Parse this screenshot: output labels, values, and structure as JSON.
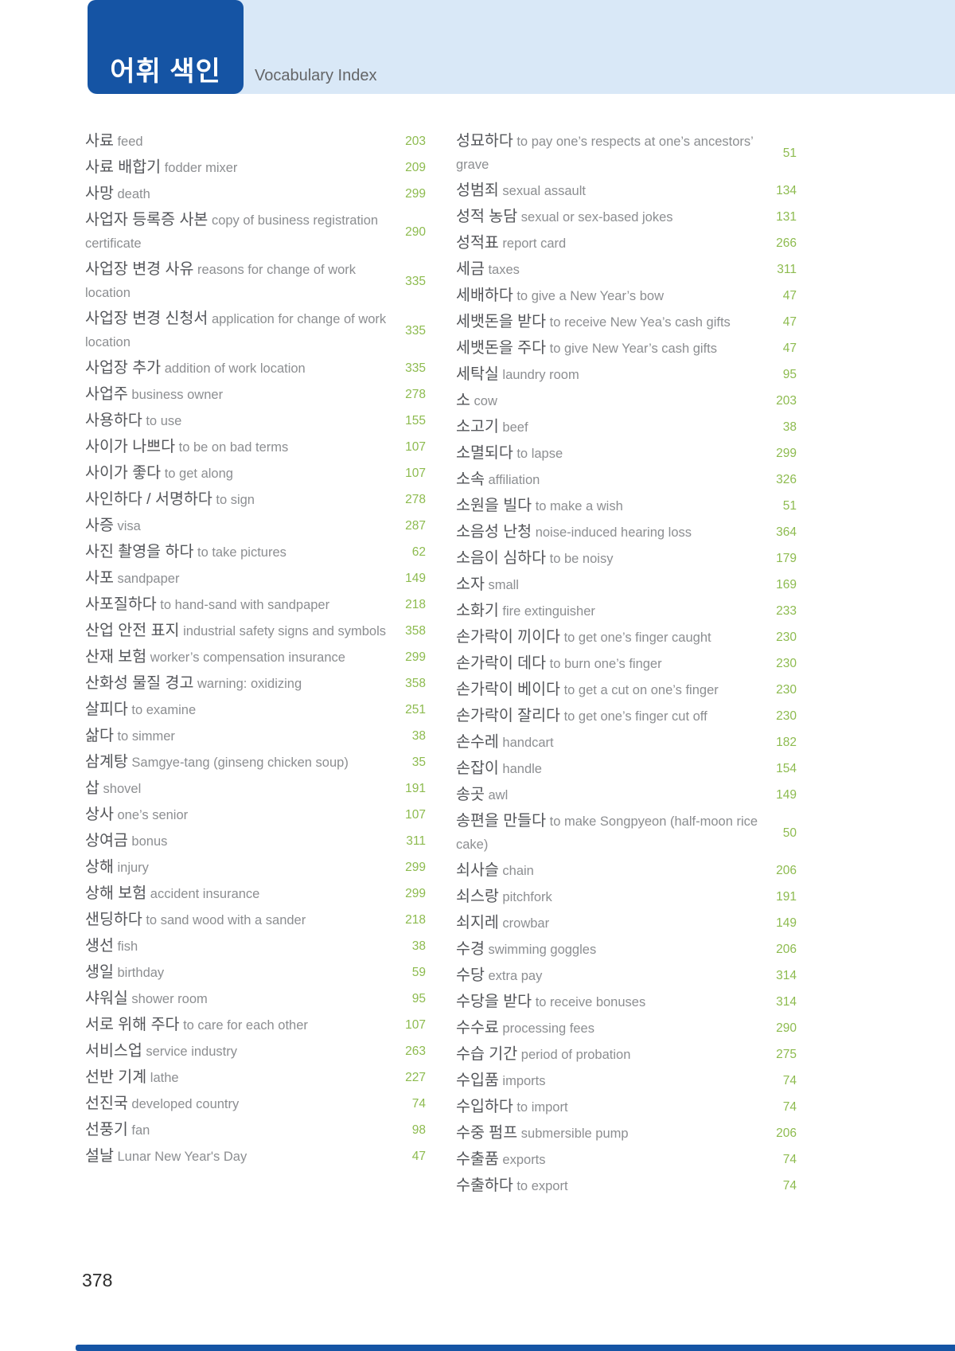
{
  "header": {
    "title_ko": "어휘 색인",
    "title_en": "Vocabulary Index"
  },
  "footer": {
    "page_number": "378"
  },
  "colors": {
    "accent_blue": "#1554a4",
    "band_blue": "#d9e8f7",
    "number_green": "#8dbb4f",
    "korean_text": "#54565a",
    "english_text": "#8c8e91"
  },
  "columns": [
    {
      "entries": [
        {
          "ko": "사료",
          "en": "feed",
          "page": "203"
        },
        {
          "ko": "사료 배합기",
          "en": "fodder mixer",
          "page": "209"
        },
        {
          "ko": "사망",
          "en": "death",
          "page": "299"
        },
        {
          "ko": "사업자 등록증 사본",
          "en": "copy of business registration certificate",
          "page": "290"
        },
        {
          "ko": "사업장 변경 사유",
          "en": "reasons for change of work location",
          "page": "335"
        },
        {
          "ko": "사업장 변경 신청서",
          "en": "application for change of work location",
          "page": "335"
        },
        {
          "ko": "사업장 추가",
          "en": "addition of work location",
          "page": "335"
        },
        {
          "ko": "사업주",
          "en": "business owner",
          "page": "278"
        },
        {
          "ko": "사용하다",
          "en": "to use",
          "page": "155"
        },
        {
          "ko": "사이가 나쁘다",
          "en": "to be on bad terms",
          "page": "107"
        },
        {
          "ko": "사이가 좋다",
          "en": "to get along",
          "page": "107"
        },
        {
          "ko": "사인하다 / 서명하다",
          "en": "to sign",
          "page": "278"
        },
        {
          "ko": "사증",
          "en": "visa",
          "page": "287"
        },
        {
          "ko": "사진 촬영을 하다",
          "en": "to take pictures",
          "page": "62"
        },
        {
          "ko": "사포",
          "en": "sandpaper",
          "page": "149"
        },
        {
          "ko": "사포질하다",
          "en": "to hand-sand with sandpaper",
          "page": "218"
        },
        {
          "ko": "산업 안전 표지",
          "en": "industrial safety signs and symbols",
          "page": "358"
        },
        {
          "ko": "산재 보험",
          "en": "worker’s compensation insurance",
          "page": "299"
        },
        {
          "ko": "산화성 물질 경고",
          "en": "warning: oxidizing",
          "page": "358"
        },
        {
          "ko": "살피다",
          "en": "to examine",
          "page": "251"
        },
        {
          "ko": "삶다",
          "en": "to simmer",
          "page": "38"
        },
        {
          "ko": "삼계탕",
          "en": "Samgye-tang (ginseng chicken soup)",
          "page": "35"
        },
        {
          "ko": "삽",
          "en": "shovel",
          "page": "191"
        },
        {
          "ko": "상사",
          "en": "one’s senior",
          "page": "107"
        },
        {
          "ko": "상여금",
          "en": "bonus",
          "page": "311"
        },
        {
          "ko": "상해",
          "en": "injury",
          "page": "299"
        },
        {
          "ko": "상해 보험",
          "en": "accident insurance",
          "page": "299"
        },
        {
          "ko": "샌딩하다",
          "en": "to sand wood with a sander",
          "page": "218"
        },
        {
          "ko": "생선",
          "en": "fish",
          "page": "38"
        },
        {
          "ko": "생일",
          "en": "birthday",
          "page": "59"
        },
        {
          "ko": "샤워실",
          "en": "shower room",
          "page": "95"
        },
        {
          "ko": "서로 위해 주다",
          "en": "to care for each other",
          "page": "107"
        },
        {
          "ko": "서비스업",
          "en": "service industry",
          "page": "263"
        },
        {
          "ko": "선반 기계",
          "en": "lathe",
          "page": "227"
        },
        {
          "ko": "선진국",
          "en": "developed country",
          "page": "74"
        },
        {
          "ko": "선풍기",
          "en": "fan",
          "page": "98"
        },
        {
          "ko": "설날",
          "en": "Lunar New Year's Day",
          "page": "47"
        }
      ]
    },
    {
      "entries": [
        {
          "ko": "성묘하다",
          "en": "to pay one’s respects at one’s ancestors’ grave",
          "page": "51"
        },
        {
          "ko": "성범죄",
          "en": "sexual assault",
          "page": "134"
        },
        {
          "ko": "성적 농담",
          "en": "sexual or sex-based jokes",
          "page": "131"
        },
        {
          "ko": "성적표",
          "en": "report card",
          "page": "266"
        },
        {
          "ko": "세금",
          "en": "taxes",
          "page": "311"
        },
        {
          "ko": "세배하다",
          "en": "to give a New Year’s bow",
          "page": "47"
        },
        {
          "ko": "세뱃돈을 받다",
          "en": "to receive New Yea’s cash gifts",
          "page": "47"
        },
        {
          "ko": "세뱃돈을 주다",
          "en": "to give New Year’s cash gifts",
          "page": "47"
        },
        {
          "ko": "세탁실",
          "en": "laundry room",
          "page": "95"
        },
        {
          "ko": "소",
          "en": "cow",
          "page": "203"
        },
        {
          "ko": "소고기",
          "en": "beef",
          "page": "38"
        },
        {
          "ko": "소멸되다",
          "en": "to lapse",
          "page": "299"
        },
        {
          "ko": "소속",
          "en": "affiliation",
          "page": "326"
        },
        {
          "ko": "소원을 빌다",
          "en": "to make a wish",
          "page": "51"
        },
        {
          "ko": "소음성 난청",
          "en": "noise-induced hearing loss",
          "page": "364"
        },
        {
          "ko": "소음이 심하다",
          "en": "to be noisy",
          "page": "179"
        },
        {
          "ko": "소자",
          "en": "small",
          "page": "169"
        },
        {
          "ko": "소화기",
          "en": "fire extinguisher",
          "page": "233"
        },
        {
          "ko": "손가락이 끼이다",
          "en": "to get one’s finger caught",
          "page": "230"
        },
        {
          "ko": "손가락이 데다",
          "en": "to burn one’s finger",
          "page": "230"
        },
        {
          "ko": "손가락이 베이다",
          "en": "to get a cut on one’s finger",
          "page": "230"
        },
        {
          "ko": "손가락이 잘리다",
          "en": "to get one’s finger cut off",
          "page": "230"
        },
        {
          "ko": "손수레",
          "en": "handcart",
          "page": "182"
        },
        {
          "ko": "손잡이",
          "en": "handle",
          "page": "154"
        },
        {
          "ko": "송곳",
          "en": "awl",
          "page": "149"
        },
        {
          "ko": "송편을 만들다",
          "en": "to make Songpyeon (half-moon rice cake)",
          "page": "50"
        },
        {
          "ko": "쇠사슬",
          "en": "chain",
          "page": "206"
        },
        {
          "ko": "쇠스랑",
          "en": "pitchfork",
          "page": "191"
        },
        {
          "ko": "쇠지레",
          "en": "crowbar",
          "page": "149"
        },
        {
          "ko": "수경",
          "en": "swimming goggles",
          "page": "206"
        },
        {
          "ko": "수당",
          "en": "extra pay",
          "page": "314"
        },
        {
          "ko": "수당을 받다",
          "en": "to receive bonuses",
          "page": "314"
        },
        {
          "ko": "수수료",
          "en": "processing fees",
          "page": "290"
        },
        {
          "ko": "수습 기간",
          "en": "period of probation",
          "page": "275"
        },
        {
          "ko": "수입품",
          "en": "imports",
          "page": "74"
        },
        {
          "ko": "수입하다",
          "en": "to import",
          "page": "74"
        },
        {
          "ko": "수중 펌프",
          "en": "submersible pump",
          "page": "206"
        },
        {
          "ko": "수출품",
          "en": "exports",
          "page": "74"
        },
        {
          "ko": "수출하다",
          "en": "to export",
          "page": "74"
        }
      ]
    }
  ]
}
